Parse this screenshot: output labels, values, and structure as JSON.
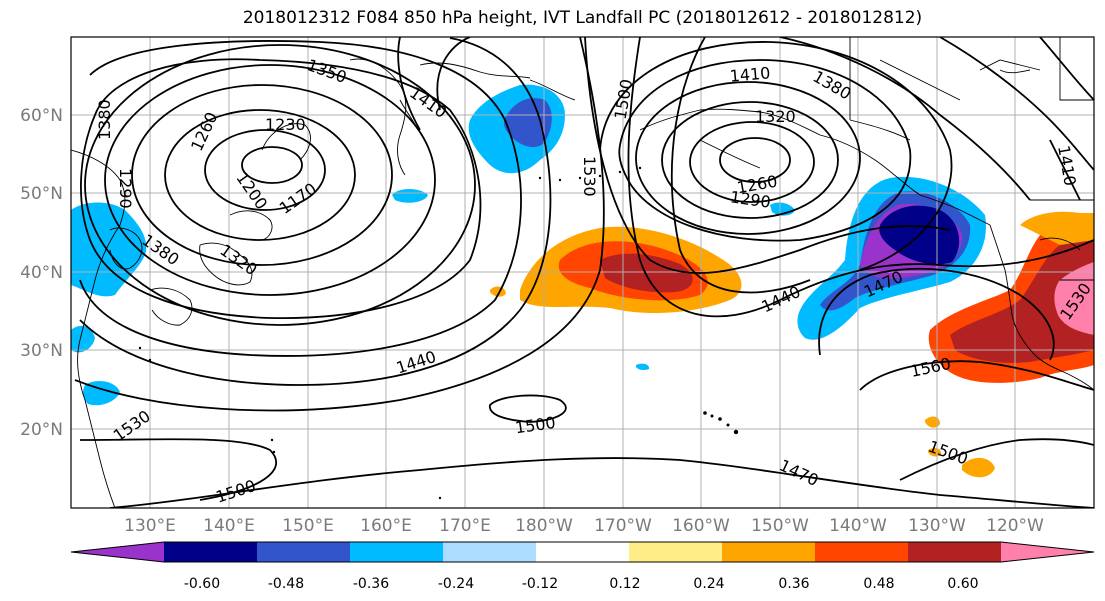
{
  "title": "2018012312 F084 850 hPa height, IVT Landfall PC (2018012612 - 2018012812)",
  "lat_labels": [
    "60°N",
    "50°N",
    "40°N",
    "30°N",
    "20°N"
  ],
  "lon_labels": [
    "130°E",
    "140°E",
    "150°E",
    "160°E",
    "170°E",
    "180°W",
    "170°W",
    "160°W",
    "150°W",
    "140°W",
    "130°W",
    "120°W"
  ],
  "colorbar": {
    "colors": [
      "#9933cc",
      "#000088",
      "#3355cc",
      "#00bbff",
      "#aaddff",
      "#ffffff",
      "#ffee88",
      "#ffa500",
      "#ff4500",
      "#b22222",
      "#ff80aa"
    ],
    "tick_labels": [
      "-0.60",
      "-0.48",
      "-0.36",
      "-0.24",
      "-0.12",
      "0.12",
      "0.24",
      "0.36",
      "0.48",
      "0.60"
    ]
  },
  "contour_labels": [
    "1350",
    "1410",
    "1500",
    "1410",
    "1380",
    "1320",
    "1260",
    "1230",
    "1170",
    "1200",
    "1380",
    "1290",
    "1260",
    "1290",
    "1530",
    "1380",
    "1320",
    "1470",
    "1440",
    "1440",
    "1530",
    "1560",
    "1500",
    "1530",
    "1500",
    "1500",
    "1470",
    "1410"
  ]
}
